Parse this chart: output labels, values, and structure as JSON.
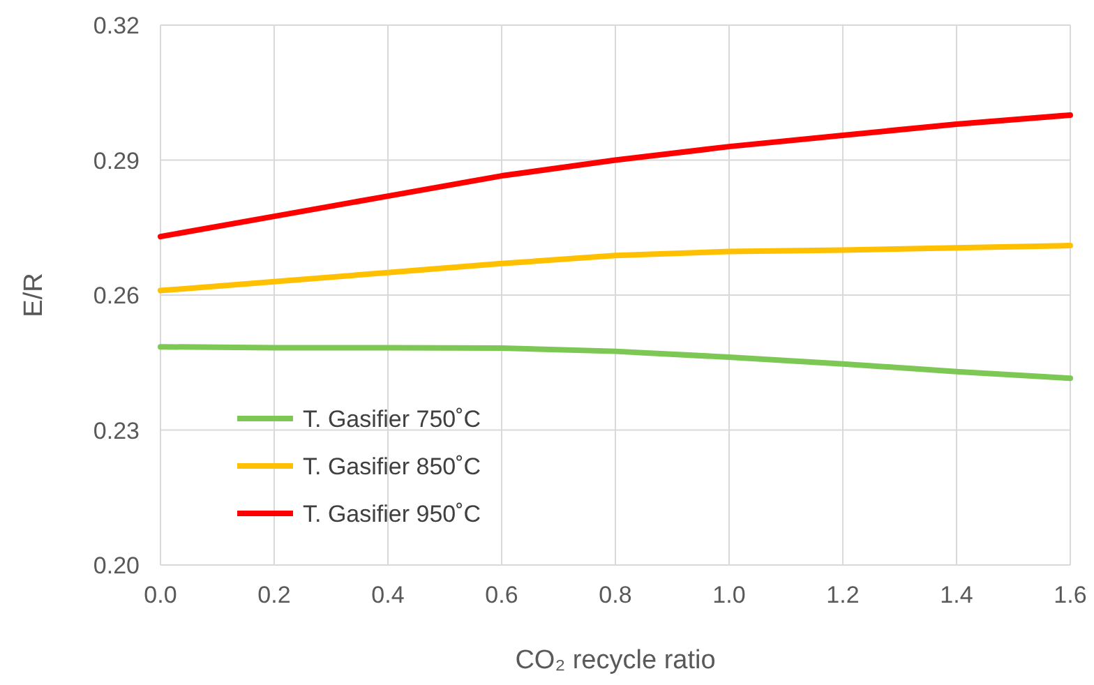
{
  "chart_data": {
    "type": "line",
    "xlabel": "CO₂ recycle ratio",
    "ylabel": "E/R",
    "x": [
      0,
      0.2,
      0.4,
      0.6,
      0.8,
      1.0,
      1.2,
      1.4,
      1.6
    ],
    "series": [
      {
        "name": "T. Gasifier 750˚C",
        "color": "#7dc855",
        "values": [
          0.2485,
          0.2483,
          0.2483,
          0.2482,
          0.2475,
          0.2462,
          0.2447,
          0.243,
          0.2415
        ]
      },
      {
        "name": "T. Gasifier 850˚C",
        "color": "#ffc000",
        "values": [
          0.261,
          0.263,
          0.265,
          0.267,
          0.2688,
          0.2697,
          0.27,
          0.2705,
          0.271
        ]
      },
      {
        "name": "T. Gasifier 950˚C",
        "color": "#ff0000",
        "values": [
          0.273,
          0.2775,
          0.282,
          0.2865,
          0.29,
          0.293,
          0.2955,
          0.298,
          0.3
        ]
      }
    ],
    "xlim": [
      0,
      1.6
    ],
    "xticks": [
      {
        "value": 0,
        "label": "0.0"
      },
      0.2,
      0.4,
      0.6,
      0.8,
      {
        "value": 1,
        "label": "1.0"
      },
      1.2,
      1.4,
      1.6
    ],
    "ylim": [
      0.2,
      0.32
    ],
    "yticks": [
      {
        "value": 0.2,
        "label": "0.20"
      },
      0.23,
      0.26,
      0.29,
      0.32
    ],
    "grid": true,
    "legend": "bottom left",
    "line_style": "solid"
  }
}
